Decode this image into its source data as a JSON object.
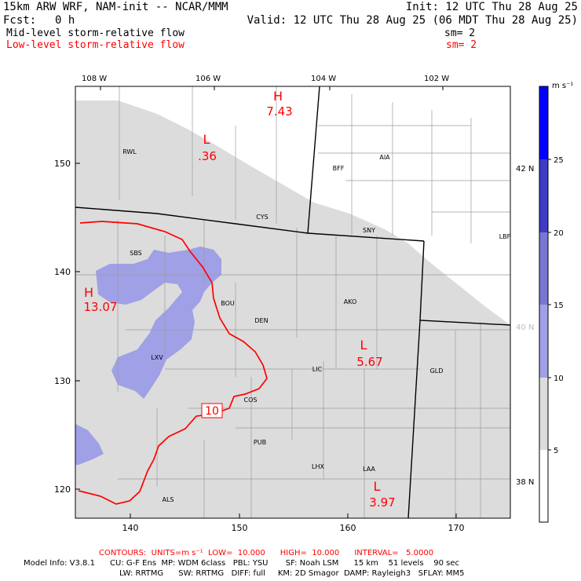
{
  "header": {
    "model": "15km ARW WRF, NAM-init -- NCAR/MMM",
    "init": "Init: 12 UTC Thu 28 Aug 25",
    "fcst_label": "Fcst:",
    "fcst_value": "0 h",
    "valid": "Valid: 12 UTC Thu 28 Aug 25 (06 MDT Thu 28 Aug 25)",
    "mid_label": "Mid-level storm-relative flow",
    "mid_sm": "sm= 2",
    "low_label": "Low-level storm-relative flow",
    "low_sm": "sm= 2"
  },
  "map": {
    "lon_labels": [
      "108 W",
      "106 W",
      "104 W",
      "102 W"
    ],
    "lat_labels": [
      "42 N",
      "40 N",
      "38 N"
    ],
    "x_ticks": [
      "140",
      "150",
      "160",
      "170"
    ],
    "y_ticks": [
      "150",
      "140",
      "130",
      "120"
    ],
    "stations": [
      "RWL",
      "CYS",
      "BFF",
      "AIA",
      "SNY",
      "LBF",
      "SBS",
      "BOU",
      "DEN",
      "AKO",
      "LXV",
      "LIC",
      "GLD",
      "COS",
      "PUB",
      "LHX",
      "LAA",
      "ALS"
    ],
    "pressure_centers": [
      {
        "type": "H",
        "value": "7.43"
      },
      {
        "type": "L",
        "value": ".36"
      },
      {
        "type": "H",
        "value": "13.07"
      },
      {
        "type": "L",
        "value": "5.67"
      },
      {
        "type": "L",
        "value": "3.97"
      }
    ],
    "contour_label": "10",
    "colors": {
      "land": "#dcdcdc",
      "white": "#ffffff",
      "shade": "#a0a0e6",
      "contour": "#ff0000",
      "border": "#000000"
    }
  },
  "colorbar": {
    "units": "m s⁻¹",
    "ticks": [
      "25",
      "20",
      "15",
      "10",
      "5"
    ],
    "colors": [
      "#0000ff",
      "#3c3cc8",
      "#7878d2",
      "#a0a0e6",
      "#dcdcdc",
      "#ffffff"
    ]
  },
  "footer": {
    "contours": "CONTOURS:  UNITS=m s⁻¹  LOW=  10.000      HIGH=  10.000      INTERVAL=   5.0000",
    "info1": "Model Info: V3.8.1      CU: G-F Ens  MP: WDM 6class   PBL: YSU       SF: Noah LSM      15 km    51 levels    90 sec",
    "info2": "LW: RRTMG      SW: RRTMG   DIFF: full     KM: 2D Smagor  DAMP: Rayleigh3   SFLAY: MM5"
  }
}
